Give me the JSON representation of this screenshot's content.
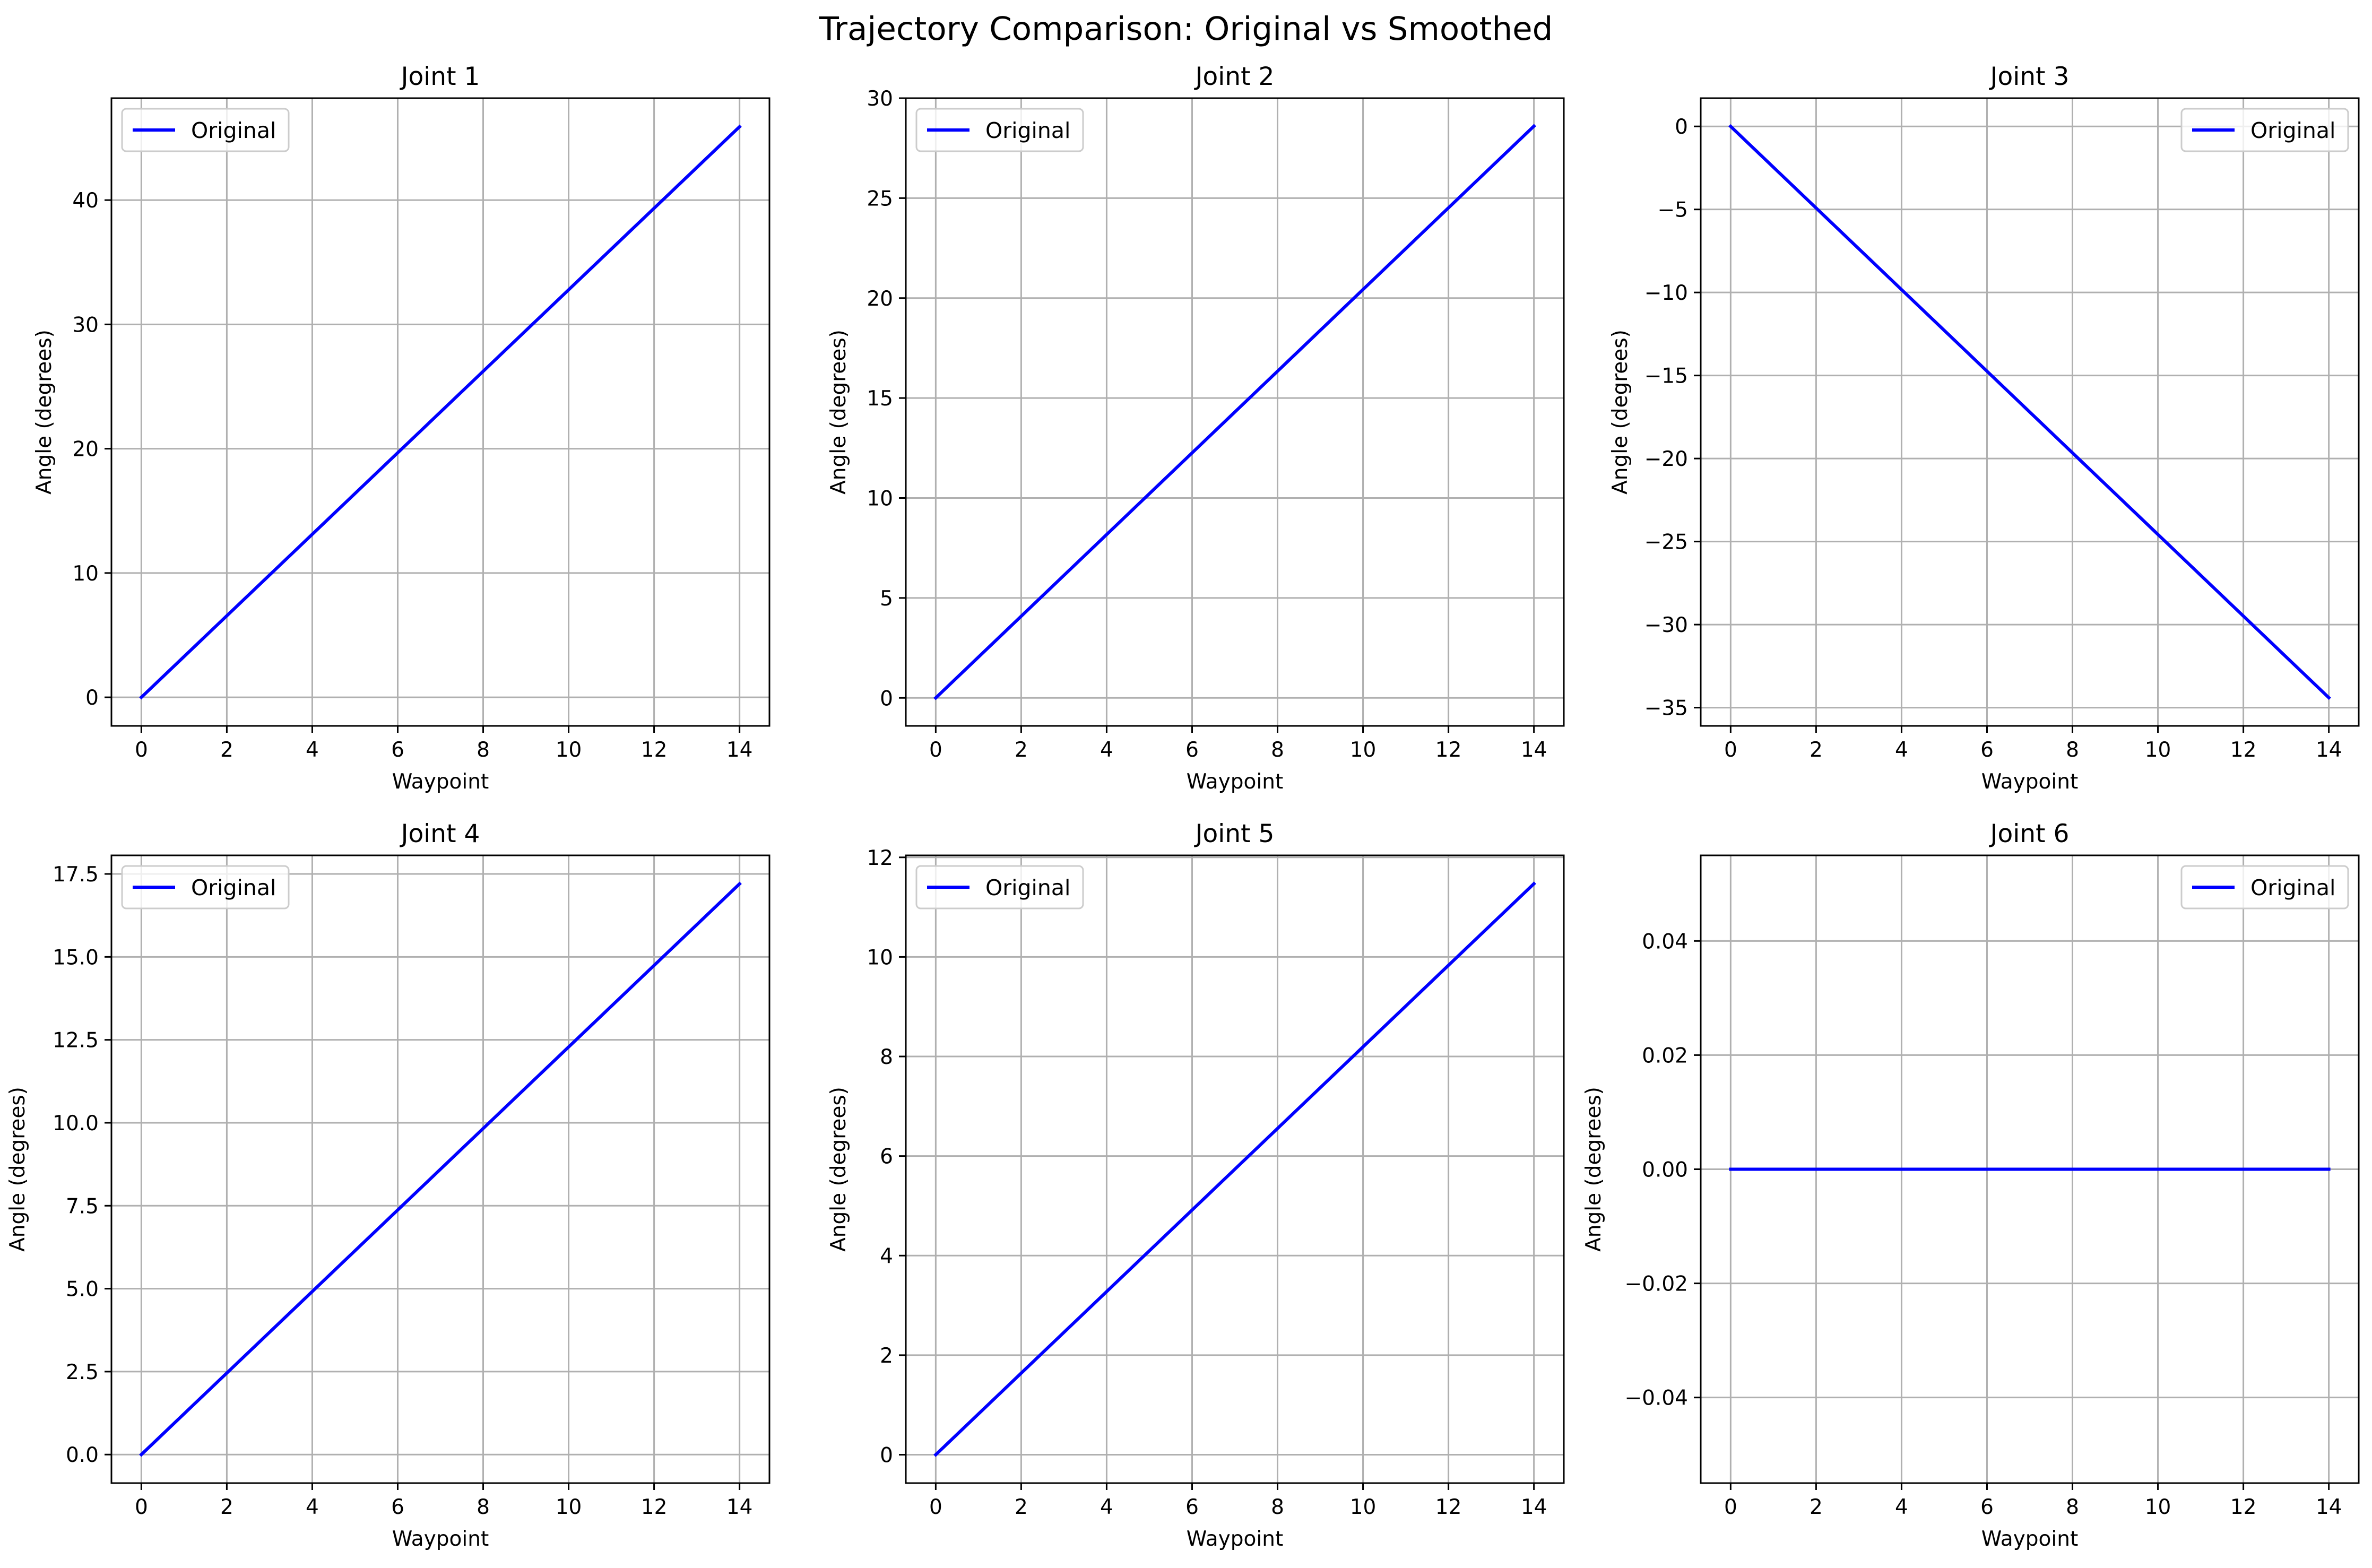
{
  "figure": {
    "title": "Trajectory Comparison: Original vs Smoothed"
  },
  "colors": {
    "line": "#0000ff",
    "grid": "#b0b0b0",
    "axes": "#000000",
    "legend_border": "#cccccc"
  },
  "chart_data": [
    {
      "type": "line",
      "title": "Joint 1",
      "xlabel": "Waypoint",
      "ylabel": "Angle (degrees)",
      "xlim": [
        -0.7,
        14.7
      ],
      "ylim": [
        -2.3,
        48.2
      ],
      "xticks": [
        0,
        2,
        4,
        6,
        8,
        10,
        12,
        14
      ],
      "yticks": [
        0,
        10,
        20,
        30,
        40
      ],
      "ytick_labels": [
        "0",
        "10",
        "20",
        "30",
        "40"
      ],
      "grid": true,
      "legend": "upper left",
      "series": [
        {
          "name": "Original",
          "x": [
            0,
            14
          ],
          "y": [
            0,
            45.9
          ]
        }
      ]
    },
    {
      "type": "line",
      "title": "Joint 2",
      "xlabel": "Waypoint",
      "ylabel": "Angle (degrees)",
      "xlim": [
        -0.7,
        14.7
      ],
      "ylim": [
        -1.4,
        30.0
      ],
      "xticks": [
        0,
        2,
        4,
        6,
        8,
        10,
        12,
        14
      ],
      "yticks": [
        0,
        5,
        10,
        15,
        20,
        25,
        30
      ],
      "ytick_labels": [
        "0",
        "5",
        "10",
        "15",
        "20",
        "25",
        "30"
      ],
      "grid": true,
      "legend": "upper left",
      "series": [
        {
          "name": "Original",
          "x": [
            0,
            14
          ],
          "y": [
            0,
            28.6
          ]
        }
      ]
    },
    {
      "type": "line",
      "title": "Joint 3",
      "xlabel": "Waypoint",
      "ylabel": "Angle (degrees)",
      "xlim": [
        -0.7,
        14.7
      ],
      "ylim": [
        -36.1,
        1.7
      ],
      "xticks": [
        0,
        2,
        4,
        6,
        8,
        10,
        12,
        14
      ],
      "yticks": [
        0,
        -5,
        -10,
        -15,
        -20,
        -25,
        -30,
        -35
      ],
      "ytick_labels": [
        "0",
        "−5",
        "−10",
        "−15",
        "−20",
        "−25",
        "−30",
        "−35"
      ],
      "grid": true,
      "legend": "upper right",
      "series": [
        {
          "name": "Original",
          "x": [
            0,
            14
          ],
          "y": [
            0,
            -34.4
          ]
        }
      ]
    },
    {
      "type": "line",
      "title": "Joint 4",
      "xlabel": "Waypoint",
      "ylabel": "Angle (degrees)",
      "xlim": [
        -0.7,
        14.7
      ],
      "ylim": [
        -0.86,
        18.06
      ],
      "xticks": [
        0,
        2,
        4,
        6,
        8,
        10,
        12,
        14
      ],
      "yticks": [
        0,
        2.5,
        5,
        7.5,
        10,
        12.5,
        15,
        17.5
      ],
      "ytick_labels": [
        "0.0",
        "2.5",
        "5.0",
        "7.5",
        "10.0",
        "12.5",
        "15.0",
        "17.5"
      ],
      "grid": true,
      "legend": "upper left",
      "series": [
        {
          "name": "Original",
          "x": [
            0,
            14
          ],
          "y": [
            0,
            17.2
          ]
        }
      ]
    },
    {
      "type": "line",
      "title": "Joint 5",
      "xlabel": "Waypoint",
      "ylabel": "Angle (degrees)",
      "xlim": [
        -0.7,
        14.7
      ],
      "ylim": [
        -0.57,
        12.04
      ],
      "xticks": [
        0,
        2,
        4,
        6,
        8,
        10,
        12,
        14
      ],
      "yticks": [
        0,
        2,
        4,
        6,
        8,
        10,
        12
      ],
      "ytick_labels": [
        "0",
        "2",
        "4",
        "6",
        "8",
        "10",
        "12"
      ],
      "grid": true,
      "legend": "upper left",
      "series": [
        {
          "name": "Original",
          "x": [
            0,
            14
          ],
          "y": [
            0,
            11.47
          ]
        }
      ]
    },
    {
      "type": "line",
      "title": "Joint 6",
      "xlabel": "Waypoint",
      "ylabel": "Angle (degrees)",
      "xlim": [
        -0.7,
        14.7
      ],
      "ylim": [
        -0.055,
        0.055
      ],
      "xticks": [
        0,
        2,
        4,
        6,
        8,
        10,
        12,
        14
      ],
      "yticks": [
        -0.04,
        -0.02,
        0,
        0.02,
        0.04
      ],
      "ytick_labels": [
        "−0.04",
        "−0.02",
        "0.00",
        "0.02",
        "0.04"
      ],
      "grid": true,
      "legend": "upper right",
      "series": [
        {
          "name": "Original",
          "x": [
            0,
            14
          ],
          "y": [
            0,
            0
          ]
        }
      ]
    }
  ]
}
